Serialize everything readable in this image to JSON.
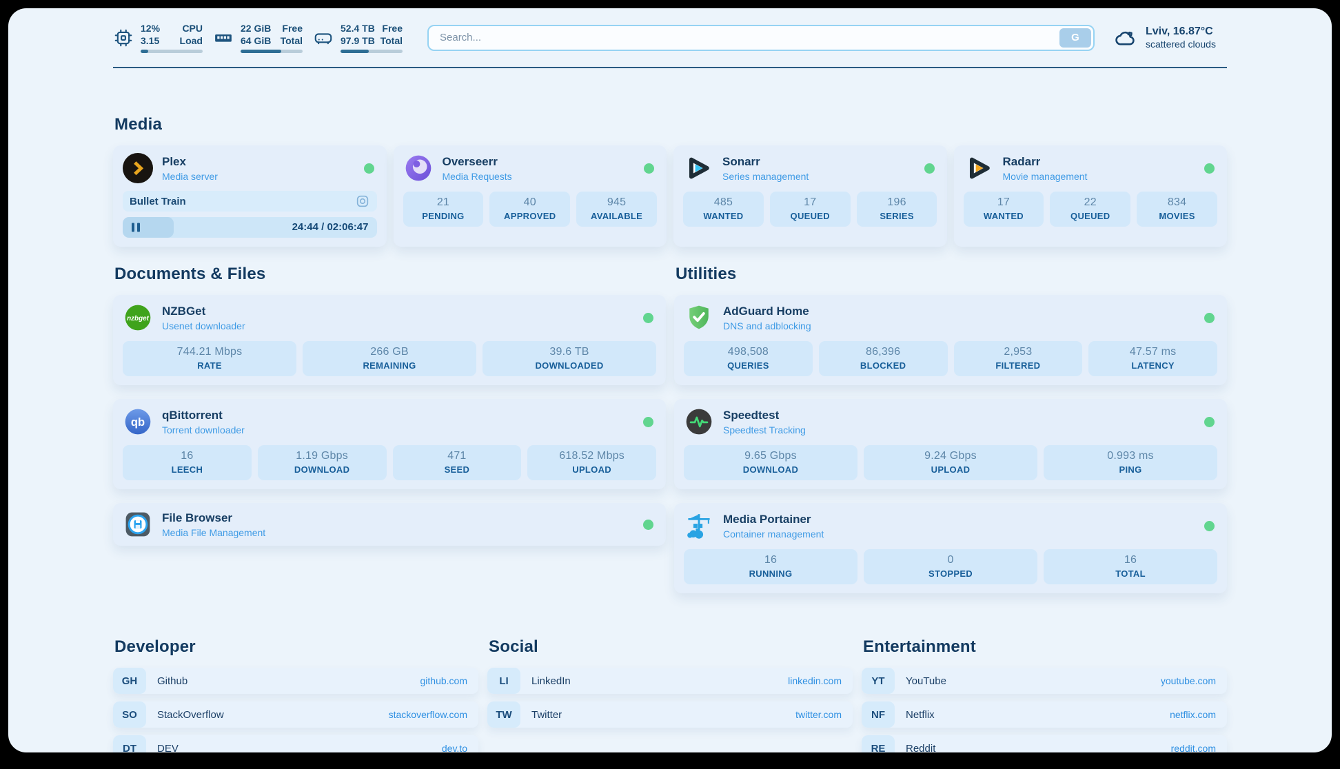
{
  "header": {
    "monitors": [
      {
        "icon": "cpu",
        "values": [
          "12%",
          "3.15"
        ],
        "labels": [
          "CPU",
          "Load"
        ],
        "progress_pct": "12%"
      },
      {
        "icon": "ram",
        "values": [
          "22 GiB",
          "64 GiB"
        ],
        "labels": [
          "Free",
          "Total"
        ],
        "progress_pct": "66%"
      },
      {
        "icon": "disk",
        "values": [
          "52.4 TB",
          "97.9 TB"
        ],
        "labels": [
          "Free",
          "Total"
        ],
        "progress_pct": "46%"
      }
    ],
    "search": {
      "placeholder": "Search...",
      "button_label": "G"
    },
    "weather": {
      "line1": "Lviv, 16.87°C",
      "line2": "scattered clouds"
    }
  },
  "sections": {
    "media": {
      "title": "Media",
      "apps": [
        {
          "name": "Plex",
          "subtitle": "Media server",
          "status": "online",
          "now_playing": {
            "title": "Bullet Train",
            "time": "24:44 / 02:06:47",
            "progress_pct": "20%"
          }
        },
        {
          "name": "Overseerr",
          "subtitle": "Media Requests",
          "status": "online",
          "stats": [
            {
              "value": "21",
              "label": "PENDING"
            },
            {
              "value": "40",
              "label": "APPROVED"
            },
            {
              "value": "945",
              "label": "AVAILABLE"
            }
          ]
        },
        {
          "name": "Sonarr",
          "subtitle": "Series management",
          "status": "online",
          "stats": [
            {
              "value": "485",
              "label": "WANTED"
            },
            {
              "value": "17",
              "label": "QUEUED"
            },
            {
              "value": "196",
              "label": "SERIES"
            }
          ]
        },
        {
          "name": "Radarr",
          "subtitle": "Movie management",
          "status": "online",
          "stats": [
            {
              "value": "17",
              "label": "WANTED"
            },
            {
              "value": "22",
              "label": "QUEUED"
            },
            {
              "value": "834",
              "label": "MOVIES"
            }
          ]
        }
      ]
    },
    "documents": {
      "title": "Documents & Files",
      "apps": [
        {
          "name": "NZBGet",
          "subtitle": "Usenet downloader",
          "icon_text": "nzbget",
          "status": "online",
          "stats": [
            {
              "value": "744.21 Mbps",
              "label": "RATE"
            },
            {
              "value": "266 GB",
              "label": "REMAINING"
            },
            {
              "value": "39.6 TB",
              "label": "DOWNLOADED"
            }
          ]
        },
        {
          "name": "qBittorrent",
          "subtitle": "Torrent downloader",
          "icon_text": "qb",
          "status": "online",
          "stats": [
            {
              "value": "16",
              "label": "LEECH"
            },
            {
              "value": "1.19 Gbps",
              "label": "DOWNLOAD"
            },
            {
              "value": "471",
              "label": "SEED"
            },
            {
              "value": "618.52 Mbps",
              "label": "UPLOAD"
            }
          ]
        },
        {
          "name": "File Browser",
          "subtitle": "Media File Management",
          "status": "online",
          "stats": []
        }
      ]
    },
    "utilities": {
      "title": "Utilities",
      "apps": [
        {
          "name": "AdGuard Home",
          "subtitle": "DNS and adblocking",
          "status": "online",
          "stats": [
            {
              "value": "498,508",
              "label": "QUERIES"
            },
            {
              "value": "86,396",
              "label": "BLOCKED"
            },
            {
              "value": "2,953",
              "label": "FILTERED"
            },
            {
              "value": "47.57 ms",
              "label": "LATENCY"
            }
          ]
        },
        {
          "name": "Speedtest",
          "subtitle": "Speedtest Tracking",
          "status": "online",
          "stats": [
            {
              "value": "9.65 Gbps",
              "label": "DOWNLOAD"
            },
            {
              "value": "9.24 Gbps",
              "label": "UPLOAD"
            },
            {
              "value": "0.993 ms",
              "label": "PING"
            }
          ]
        },
        {
          "name": "Media Portainer",
          "subtitle": "Container management",
          "status": "online",
          "stats": [
            {
              "value": "16",
              "label": "RUNNING"
            },
            {
              "value": "0",
              "label": "STOPPED"
            },
            {
              "value": "16",
              "label": "TOTAL"
            }
          ]
        }
      ]
    }
  },
  "bookmarks": [
    {
      "title": "Developer",
      "links": [
        {
          "abbr": "GH",
          "name": "Github",
          "url": "github.com"
        },
        {
          "abbr": "SO",
          "name": "StackOverflow",
          "url": "stackoverflow.com"
        },
        {
          "abbr": "DT",
          "name": "DEV",
          "url": "dev.to"
        }
      ]
    },
    {
      "title": "Social",
      "links": [
        {
          "abbr": "LI",
          "name": "LinkedIn",
          "url": "linkedin.com"
        },
        {
          "abbr": "TW",
          "name": "Twitter",
          "url": "twitter.com"
        }
      ]
    },
    {
      "title": "Entertainment",
      "links": [
        {
          "abbr": "YT",
          "name": "YouTube",
          "url": "youtube.com"
        },
        {
          "abbr": "NF",
          "name": "Netflix",
          "url": "netflix.com"
        },
        {
          "abbr": "RE",
          "name": "Reddit",
          "url": "reddit.com"
        }
      ]
    }
  ],
  "colors": {
    "page_background": "#ecf4fb",
    "card_background": "#e4eefa",
    "stat_tile_background": "#d2e8fa",
    "accent_blue": "#2f90e2",
    "subtitle_blue": "#3f9be5",
    "heading_navy": "#133a60",
    "status_online_green": "#61d58f",
    "progress_fill": "#2e6e95"
  }
}
